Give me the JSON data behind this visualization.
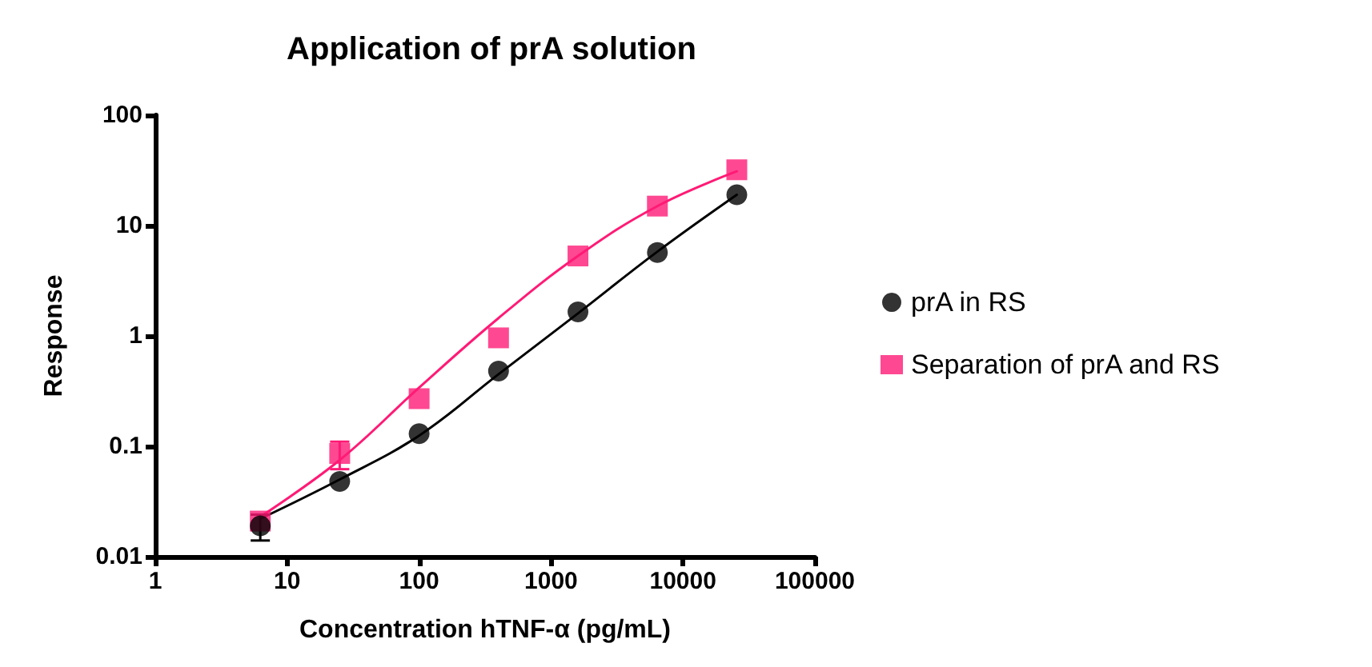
{
  "chart_data": {
    "type": "scatter",
    "title": "Application of prA solution",
    "xlabel": "Concentration hTNF-α (pg/mL)",
    "ylabel": "Response",
    "log": "xy",
    "grid": false,
    "legend": "right",
    "xlim": [
      1,
      100000
    ],
    "xticks": [
      1,
      10,
      100,
      1000,
      10000,
      100000
    ],
    "ylim": [
      0.01,
      100
    ],
    "yticks": [
      0.01,
      0.1,
      1,
      10,
      100
    ],
    "x": [
      6.25,
      25,
      100,
      400,
      1600,
      6400,
      25600
    ],
    "series": [
      {
        "name": "prA in RS",
        "color": "#000000",
        "marker": "circle",
        "values": [
          0.019,
          0.048,
          0.13,
          0.48,
          1.65,
          5.7,
          19
        ],
        "errors": [
          [
            0.014,
            0.024
          ],
          null,
          null,
          null,
          null,
          null,
          null
        ]
      },
      {
        "name": "Separation of prA and RS",
        "color": "#ff1a75",
        "marker": "square",
        "values": [
          0.021,
          0.086,
          0.27,
          0.96,
          5.3,
          15,
          32
        ],
        "errors": [
          null,
          [
            0.062,
            0.11
          ],
          null,
          null,
          null,
          null,
          null
        ]
      },
      {
        "type": "line",
        "color": "#000000",
        "marker": "none",
        "x": [
          6.25,
          25,
          100,
          400,
          1600,
          6400,
          25600
        ],
        "values": [
          0.022,
          0.05,
          0.125,
          0.45,
          1.6,
          5.8,
          19
        ]
      },
      {
        "type": "line",
        "color": "#ff1a75",
        "marker": "none",
        "x": [
          6.25,
          25,
          100,
          400,
          1600,
          6400,
          25600
        ],
        "values": [
          0.023,
          0.075,
          0.34,
          1.45,
          5.3,
          15,
          31
        ]
      }
    ]
  }
}
